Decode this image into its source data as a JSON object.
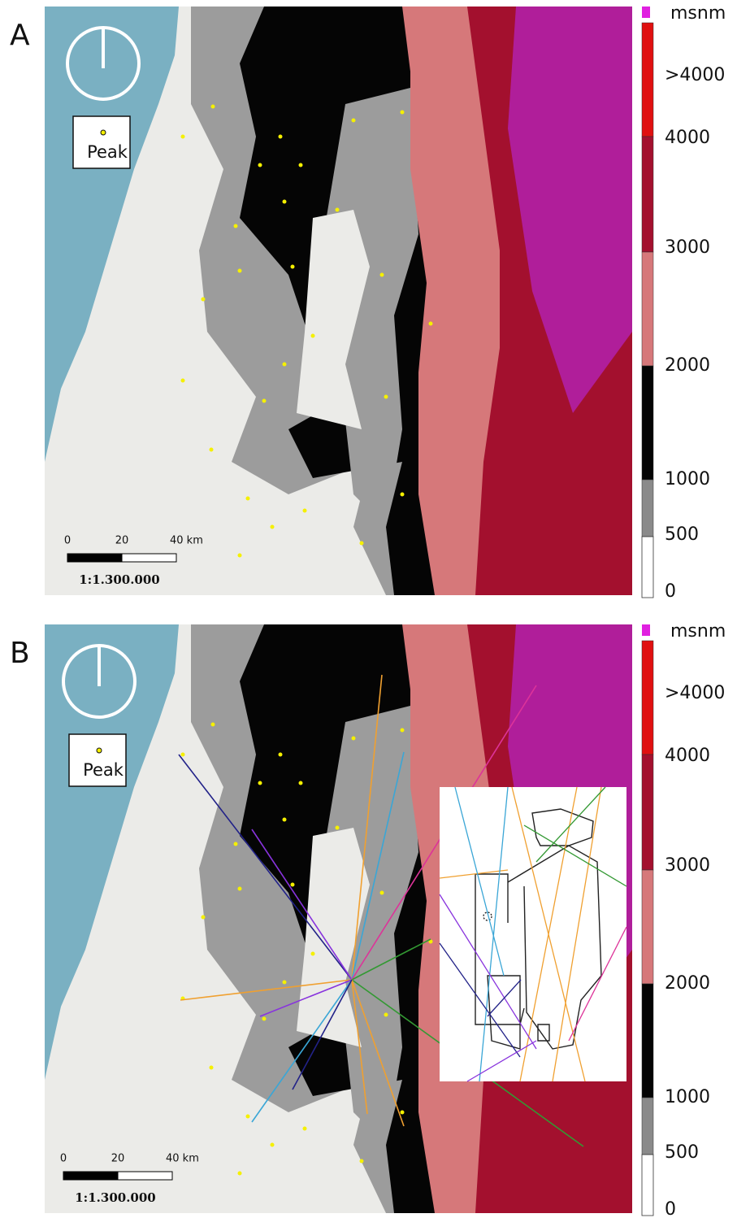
{
  "panels": [
    {
      "label": "A",
      "legend_label": "Peak",
      "scale_bar": {
        "ticks": [
          "0",
          "20",
          "40 km"
        ],
        "ratio": "1:1.300.000"
      },
      "color_scale": {
        "unit": "msnm",
        "labels": [
          ">4000",
          "4000",
          "3000",
          "2000",
          "1000",
          "500",
          "0"
        ]
      }
    },
    {
      "label": "B",
      "legend_label": "Peak",
      "scale_bar": {
        "ticks": [
          "0",
          "20",
          "40 km"
        ],
        "ratio": "1:1.300.000"
      },
      "color_scale": {
        "unit": "msnm",
        "labels": [
          ">4000",
          "4000",
          "3000",
          "2000",
          "1000",
          "500",
          "0"
        ]
      }
    }
  ]
}
